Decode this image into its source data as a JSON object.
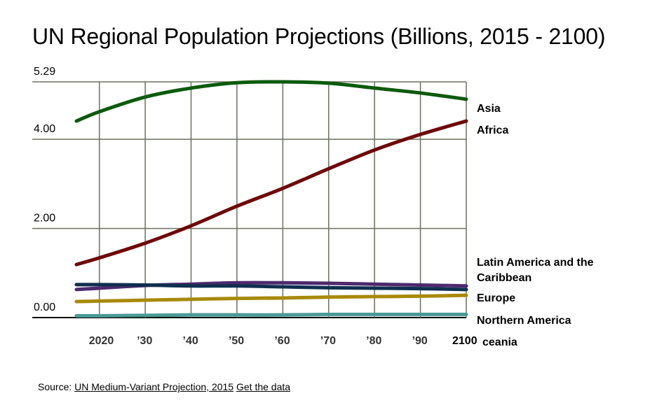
{
  "chart_data": {
    "type": "line",
    "title": "UN Regional Population Projections (Billions, 2015 - 2100)",
    "xlabel": "",
    "ylabel": "",
    "xlim": [
      2015,
      2100
    ],
    "ylim": [
      0,
      5.29
    ],
    "grid": true,
    "x": [
      2015,
      2020,
      2030,
      2040,
      2050,
      2060,
      2070,
      2080,
      2090,
      2100
    ],
    "x_ticks": [
      2020,
      2030,
      2040,
      2050,
      2060,
      2070,
      2080,
      2090,
      2100
    ],
    "x_tick_labels": [
      "2020",
      "’30",
      "’40",
      "’50",
      "’60",
      "’70",
      "’80",
      "’90",
      "2100"
    ],
    "y_ticks": [
      0,
      2,
      4,
      5.29
    ],
    "y_tick_labels": [
      "0.00",
      "2.00",
      "4.00",
      "5.29"
    ],
    "legend_placement": "right (inline labels at line ends)",
    "series": [
      {
        "name": "Asia",
        "label": "Asia",
        "color": "#0b5a0b",
        "values": [
          4.41,
          4.62,
          4.95,
          5.15,
          5.27,
          5.29,
          5.26,
          5.15,
          5.04,
          4.9
        ]
      },
      {
        "name": "Africa",
        "label": "Africa",
        "color": "#6e0808",
        "values": [
          1.19,
          1.34,
          1.67,
          2.06,
          2.5,
          2.9,
          3.34,
          3.76,
          4.11,
          4.41
        ]
      },
      {
        "name": "Latin America and the Caribbean",
        "label_lines": [
          "Latin America and the",
          "Caribbean"
        ],
        "color": "#4e2a6e",
        "values": [
          0.63,
          0.66,
          0.72,
          0.75,
          0.78,
          0.78,
          0.77,
          0.75,
          0.73,
          0.71
        ]
      },
      {
        "name": "Europe",
        "label": "Europe",
        "color": "#0f2f4f",
        "values": [
          0.74,
          0.74,
          0.73,
          0.71,
          0.71,
          0.69,
          0.67,
          0.66,
          0.65,
          0.63
        ]
      },
      {
        "name": "Northern America",
        "label": "Northern America",
        "color": "#a8890a",
        "values": [
          0.36,
          0.37,
          0.39,
          0.41,
          0.43,
          0.44,
          0.46,
          0.47,
          0.48,
          0.5
        ]
      },
      {
        "name": "Oceania",
        "label": "ceania",
        "color": "#4a9a96",
        "values": [
          0.04,
          0.04,
          0.05,
          0.06,
          0.06,
          0.06,
          0.07,
          0.07,
          0.07,
          0.07
        ]
      }
    ]
  },
  "footer": {
    "prefix": "Source: ",
    "source_link": "UN Medium-Variant Projection, 2015",
    "data_link": "Get the data"
  }
}
